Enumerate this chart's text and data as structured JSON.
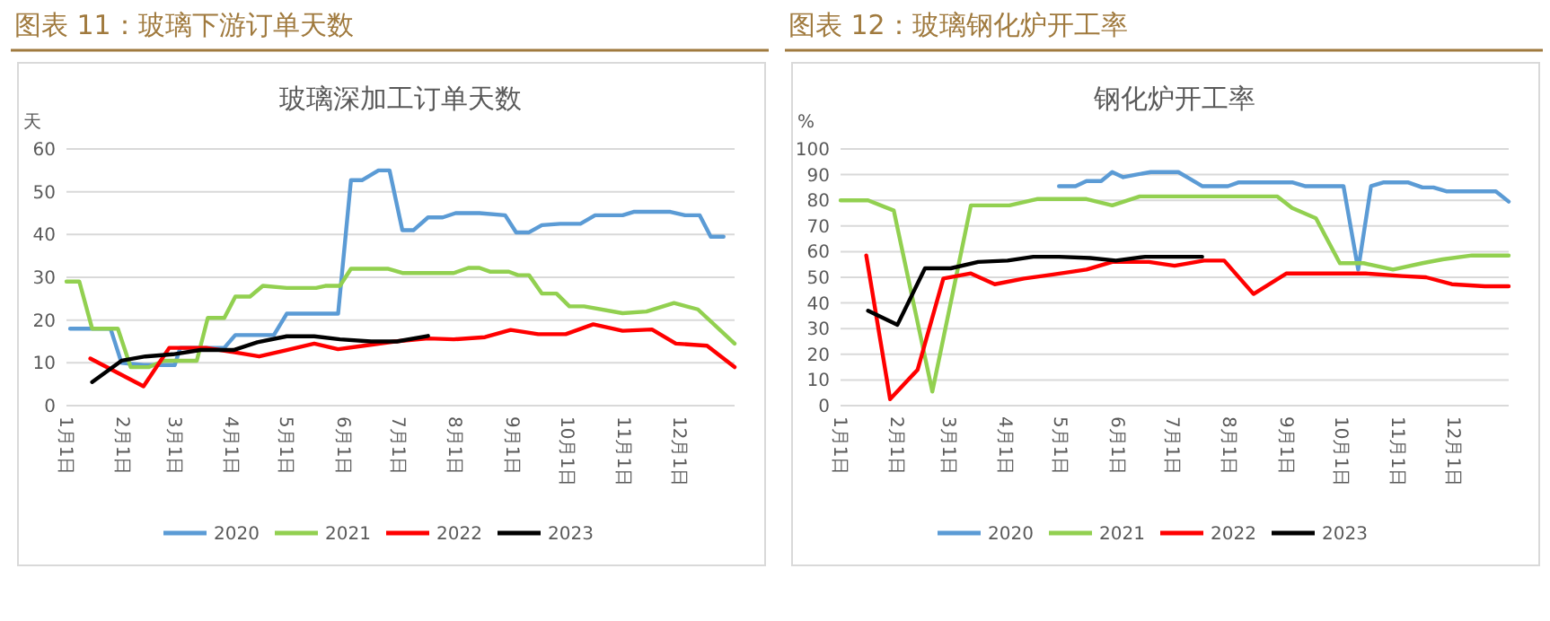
{
  "chart_data": [
    {
      "type": "line",
      "title": "图表 11：玻璃下游订单天数",
      "subtitle": "玻璃深加工订单天数",
      "ylabel": "天",
      "xlim": [
        "--01-01",
        "--12-31"
      ],
      "xticks": [
        {
          "value": "--01-01",
          "label": "1月1日"
        },
        {
          "value": "--02-01",
          "label": "2月1日"
        },
        {
          "value": "--03-01",
          "label": "3月1日"
        },
        {
          "value": "--04-01",
          "label": "4月1日"
        },
        {
          "value": "--05-01",
          "label": "5月1日"
        },
        {
          "value": "--06-01",
          "label": "6月1日"
        },
        {
          "value": "--07-01",
          "label": "7月1日"
        },
        {
          "value": "--08-01",
          "label": "8月1日"
        },
        {
          "value": "--09-01",
          "label": "9月1日"
        },
        {
          "value": "--10-01",
          "label": "10月1日"
        },
        {
          "value": "--11-01",
          "label": "11月1日"
        },
        {
          "value": "--12-01",
          "label": "12月1日"
        }
      ],
      "ylim": [
        0,
        60
      ],
      "yticks": [
        0,
        10,
        20,
        30,
        40,
        50,
        60
      ],
      "grid": "y",
      "legend": "bottom",
      "series": [
        {
          "name": "2020",
          "color": "#5b9bd5",
          "x": [
            "--01-03",
            "--01-13",
            "--01-25",
            "--01-31",
            "--02-12",
            "--03-01",
            "--03-04",
            "--03-28",
            "--04-03",
            "--04-24",
            "--05-01",
            "--05-29",
            "--06-05",
            "--06-11",
            "--06-20",
            "--06-26",
            "--07-03",
            "--07-09",
            "--07-17",
            "--07-25",
            "--08-01",
            "--08-14",
            "--08-28",
            "--09-03",
            "--09-10",
            "--09-17",
            "--09-27",
            "--10-08",
            "--10-16",
            "--10-31",
            "--11-06",
            "--11-26",
            "--12-04",
            "--12-12",
            "--12-18",
            "--12-25"
          ],
          "values": [
            18,
            18,
            18,
            10,
            9.5,
            9.5,
            13.5,
            13.5,
            16.5,
            16.5,
            21.5,
            21.5,
            52.7,
            52.7,
            55,
            55,
            41,
            41,
            44,
            44,
            45,
            45,
            44.5,
            40.5,
            40.5,
            42.2,
            42.5,
            42.5,
            44.5,
            44.5,
            45.3,
            45.3,
            44.5,
            44.5,
            39.5,
            39.5
          ]
        },
        {
          "name": "2021",
          "color": "#92d050",
          "x": [
            "--01-01",
            "--01-08",
            "--01-15",
            "--01-29",
            "--02-05",
            "--02-15",
            "--02-23",
            "--03-13",
            "--03-19",
            "--03-28",
            "--04-03",
            "--04-11",
            "--04-18",
            "--05-01",
            "--05-17",
            "--05-22",
            "--05-30",
            "--06-05",
            "--06-25",
            "--07-03",
            "--07-31",
            "--08-08",
            "--08-14",
            "--08-20",
            "--08-30",
            "--09-04",
            "--09-10",
            "--09-17",
            "--09-25",
            "--10-02",
            "--10-10",
            "--10-31",
            "--11-13",
            "--11-28",
            "--12-11",
            "--12-31"
          ],
          "values": [
            29,
            29,
            18,
            18,
            9,
            9,
            10.5,
            10.5,
            20.5,
            20.5,
            25.5,
            25.5,
            28,
            27.5,
            27.5,
            28,
            28,
            32,
            32,
            31,
            31,
            32.2,
            32.2,
            31.3,
            31.3,
            30.5,
            30.5,
            26.2,
            26.2,
            23.2,
            23.2,
            21.6,
            22,
            24,
            22.5,
            14.5
          ]
        },
        {
          "name": "2022",
          "color": "#ff0000",
          "x": [
            "--01-14",
            "--02-12",
            "--02-26",
            "--03-18",
            "--04-02",
            "--04-16",
            "--05-01",
            "--05-16",
            "--05-29",
            "--06-12",
            "--06-29",
            "--07-17",
            "--07-31",
            "--08-17",
            "--08-31",
            "--09-15",
            "--09-30",
            "--10-15",
            "--10-31",
            "--11-16",
            "--11-29",
            "--12-16",
            "--12-31"
          ],
          "values": [
            11,
            4.5,
            13.5,
            13.5,
            12.5,
            11.5,
            13,
            14.5,
            13.2,
            14,
            15,
            15.7,
            15.5,
            16,
            17.7,
            16.7,
            16.7,
            19,
            17.5,
            17.8,
            14.5,
            14,
            9
          ]
        },
        {
          "name": "2023",
          "color": "#000000",
          "x": [
            "--01-15",
            "--01-31",
            "--02-13",
            "--02-28",
            "--03-15",
            "--04-02",
            "--04-15",
            "--05-01",
            "--05-16",
            "--05-30",
            "--06-16",
            "--06-30",
            "--07-17"
          ],
          "values": [
            5.5,
            10.5,
            11.5,
            12,
            13,
            13,
            14.8,
            16.2,
            16.2,
            15.5,
            15,
            15,
            16.3
          ]
        }
      ]
    },
    {
      "type": "line",
      "title": "图表 12：玻璃钢化炉开工率",
      "subtitle": "钢化炉开工率",
      "ylabel": "%",
      "xlim": [
        "--01-01",
        "--12-31"
      ],
      "xticks": [
        {
          "value": "--01-01",
          "label": "1月1日"
        },
        {
          "value": "--02-01",
          "label": "2月1日"
        },
        {
          "value": "--03-01",
          "label": "3月1日"
        },
        {
          "value": "--04-01",
          "label": "4月1日"
        },
        {
          "value": "--05-01",
          "label": "5月1日"
        },
        {
          "value": "--06-01",
          "label": "6月1日"
        },
        {
          "value": "--07-01",
          "label": "7月1日"
        },
        {
          "value": "--08-01",
          "label": "8月1日"
        },
        {
          "value": "--09-01",
          "label": "9月1日"
        },
        {
          "value": "--10-01",
          "label": "10月1日"
        },
        {
          "value": "--11-01",
          "label": "11月1日"
        },
        {
          "value": "--12-01",
          "label": "12月1日"
        }
      ],
      "ylim": [
        0,
        100
      ],
      "yticks": [
        0,
        10,
        20,
        30,
        40,
        50,
        60,
        70,
        80,
        90,
        100
      ],
      "grid": "y",
      "legend": "bottom",
      "series": [
        {
          "name": "2020",
          "color": "#5b9bd5",
          "x": [
            "--04-30",
            "--05-09",
            "--05-15",
            "--05-23",
            "--05-29",
            "--06-04",
            "--06-11",
            "--06-19",
            "--07-04",
            "--07-10",
            "--07-17",
            "--07-31",
            "--08-06",
            "--09-04",
            "--09-11",
            "--10-02",
            "--10-10",
            "--10-17",
            "--10-24",
            "--11-06",
            "--11-14",
            "--11-20",
            "--11-27",
            "--12-24",
            "--12-31"
          ],
          "values": [
            85.5,
            85.5,
            87.5,
            87.5,
            91,
            89,
            90,
            91,
            91,
            88.5,
            85.5,
            85.5,
            87,
            87,
            85.5,
            85.5,
            53,
            85.5,
            87,
            87,
            85,
            85,
            83.5,
            83.5,
            79.5
          ]
        },
        {
          "name": "2021",
          "color": "#92d050",
          "x": [
            "--01-01",
            "--01-16",
            "--01-30",
            "--02-20",
            "--03-13",
            "--04-03",
            "--04-18",
            "--05-15",
            "--05-29",
            "--06-13",
            "--08-27",
            "--09-04",
            "--09-17",
            "--09-30",
            "--10-13",
            "--10-29",
            "--11-14",
            "--11-25",
            "--12-11",
            "--12-31"
          ],
          "values": [
            80,
            80,
            76,
            5.5,
            78,
            78,
            80.5,
            80.5,
            78,
            81.5,
            81.5,
            77,
            73,
            55.5,
            55.5,
            53,
            55.5,
            57,
            58.5,
            58.5
          ]
        },
        {
          "name": "2022",
          "color": "#ff0000",
          "x": [
            "--01-15",
            "--01-28",
            "--02-12",
            "--02-26",
            "--03-13",
            "--03-26",
            "--04-11",
            "--04-26",
            "--05-15",
            "--05-29",
            "--06-18",
            "--07-02",
            "--07-18",
            "--07-29",
            "--08-14",
            "--09-01",
            "--10-14",
            "--11-03",
            "--11-16",
            "--11-30",
            "--12-18",
            "--12-31"
          ],
          "values": [
            58.5,
            2.5,
            14,
            49.5,
            51.5,
            47.3,
            49.5,
            51,
            53,
            56,
            56,
            54.5,
            56.5,
            56.5,
            43.5,
            51.5,
            51.5,
            50.5,
            50,
            47.3,
            46.5,
            46.5
          ]
        },
        {
          "name": "2023",
          "color": "#000000",
          "x": [
            "--01-16",
            "--02-01",
            "--02-16",
            "--03-02",
            "--03-17",
            "--04-02",
            "--04-16",
            "--04-30",
            "--05-17",
            "--05-31",
            "--06-16",
            "--07-17"
          ],
          "values": [
            37,
            31.5,
            53.5,
            53.5,
            56,
            56.5,
            58,
            58,
            57.5,
            56.5,
            58,
            58
          ]
        }
      ]
    }
  ]
}
